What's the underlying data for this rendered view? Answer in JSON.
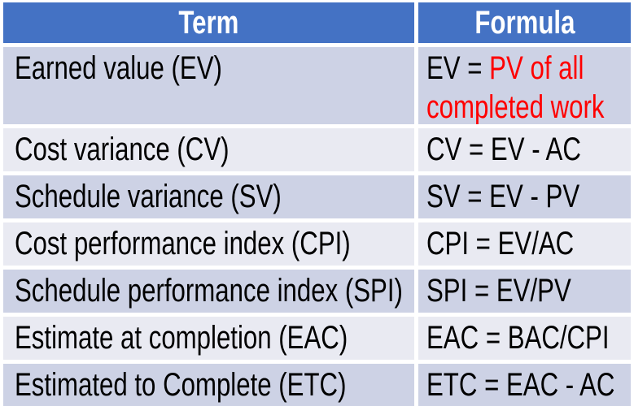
{
  "table": {
    "header": {
      "term": "Term",
      "formula": "Formula"
    },
    "rows": [
      {
        "term": "Earned value (EV)",
        "formula": "EV = PV of all completed work",
        "formula_plain": "EV = ",
        "formula_red": "PV of all completed work"
      },
      {
        "term": "Cost variance (CV)",
        "formula": "CV = EV - AC"
      },
      {
        "term": "Schedule variance (SV)",
        "formula": "SV = EV - PV"
      },
      {
        "term": "Cost performance index (CPI)",
        "formula": "CPI = EV/AC"
      },
      {
        "term": "Schedule performance index (SPI)",
        "formula": "SPI = EV/PV"
      },
      {
        "term": "Estimate at completion (EAC)",
        "formula": "EAC = BAC/CPI"
      },
      {
        "term": "Estimated to Complete (ETC)",
        "formula": "ETC = EAC - AC"
      }
    ]
  },
  "colors": {
    "page_bg": "#FFFFFF",
    "header_bg": "#4472C4",
    "header_text": "#FFFFFF",
    "band_dark": "#CDD2E5",
    "band_light": "#E9EAF2",
    "body_text": "#000000",
    "highlight_red": "#FF0000"
  }
}
